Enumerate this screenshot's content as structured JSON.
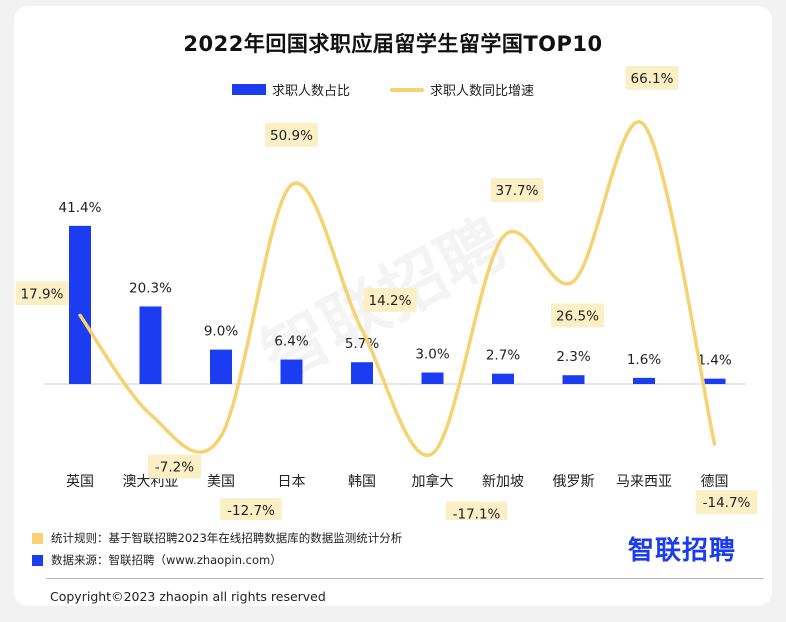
{
  "chart_data": {
    "type": "bar",
    "title": "2022年回国求职应届留学生留学国TOP10",
    "categories": [
      "英国",
      "澳大利亚",
      "美国",
      "日本",
      "韩国",
      "加拿大",
      "新加坡",
      "俄罗斯",
      "马来西亚",
      "德国"
    ],
    "series": [
      {
        "name": "求职人数占比",
        "type": "bar",
        "values": [
          41.4,
          20.3,
          9.0,
          6.4,
          5.7,
          3.0,
          2.7,
          2.3,
          1.6,
          1.4
        ],
        "labels": [
          "41.4%",
          "20.3%",
          "9.0%",
          "6.4%",
          "5.7%",
          "3.0%",
          "2.7%",
          "2.3%",
          "1.6%",
          "1.4%"
        ],
        "color": "#1b3cf0"
      },
      {
        "name": "求职人数同比增速",
        "type": "line",
        "values": [
          17.9,
          -7.2,
          -12.7,
          50.9,
          14.2,
          -17.1,
          37.7,
          26.5,
          66.1,
          -14.7
        ],
        "labels": [
          "17.9%",
          "-7.2%",
          "-12.7%",
          "50.9%",
          "14.2%",
          "-17.1%",
          "37.7%",
          "26.5%",
          "66.1%",
          "-14.7%"
        ],
        "color": "#f6d270"
      }
    ],
    "legend_position": "top-center",
    "grid": false
  },
  "watermark": "智联招聘",
  "footer": {
    "rule": "统计规则：基于智联招聘2023年在线招聘数据库的数据监测统计分析",
    "source": "数据来源：智联招聘（www.zhaopin.com）",
    "rule_color": "#f6d270",
    "source_color": "#1b3cf0",
    "logo": "智联招聘",
    "copyright": "Copyright©2023 zhaopin all rights reserved"
  }
}
